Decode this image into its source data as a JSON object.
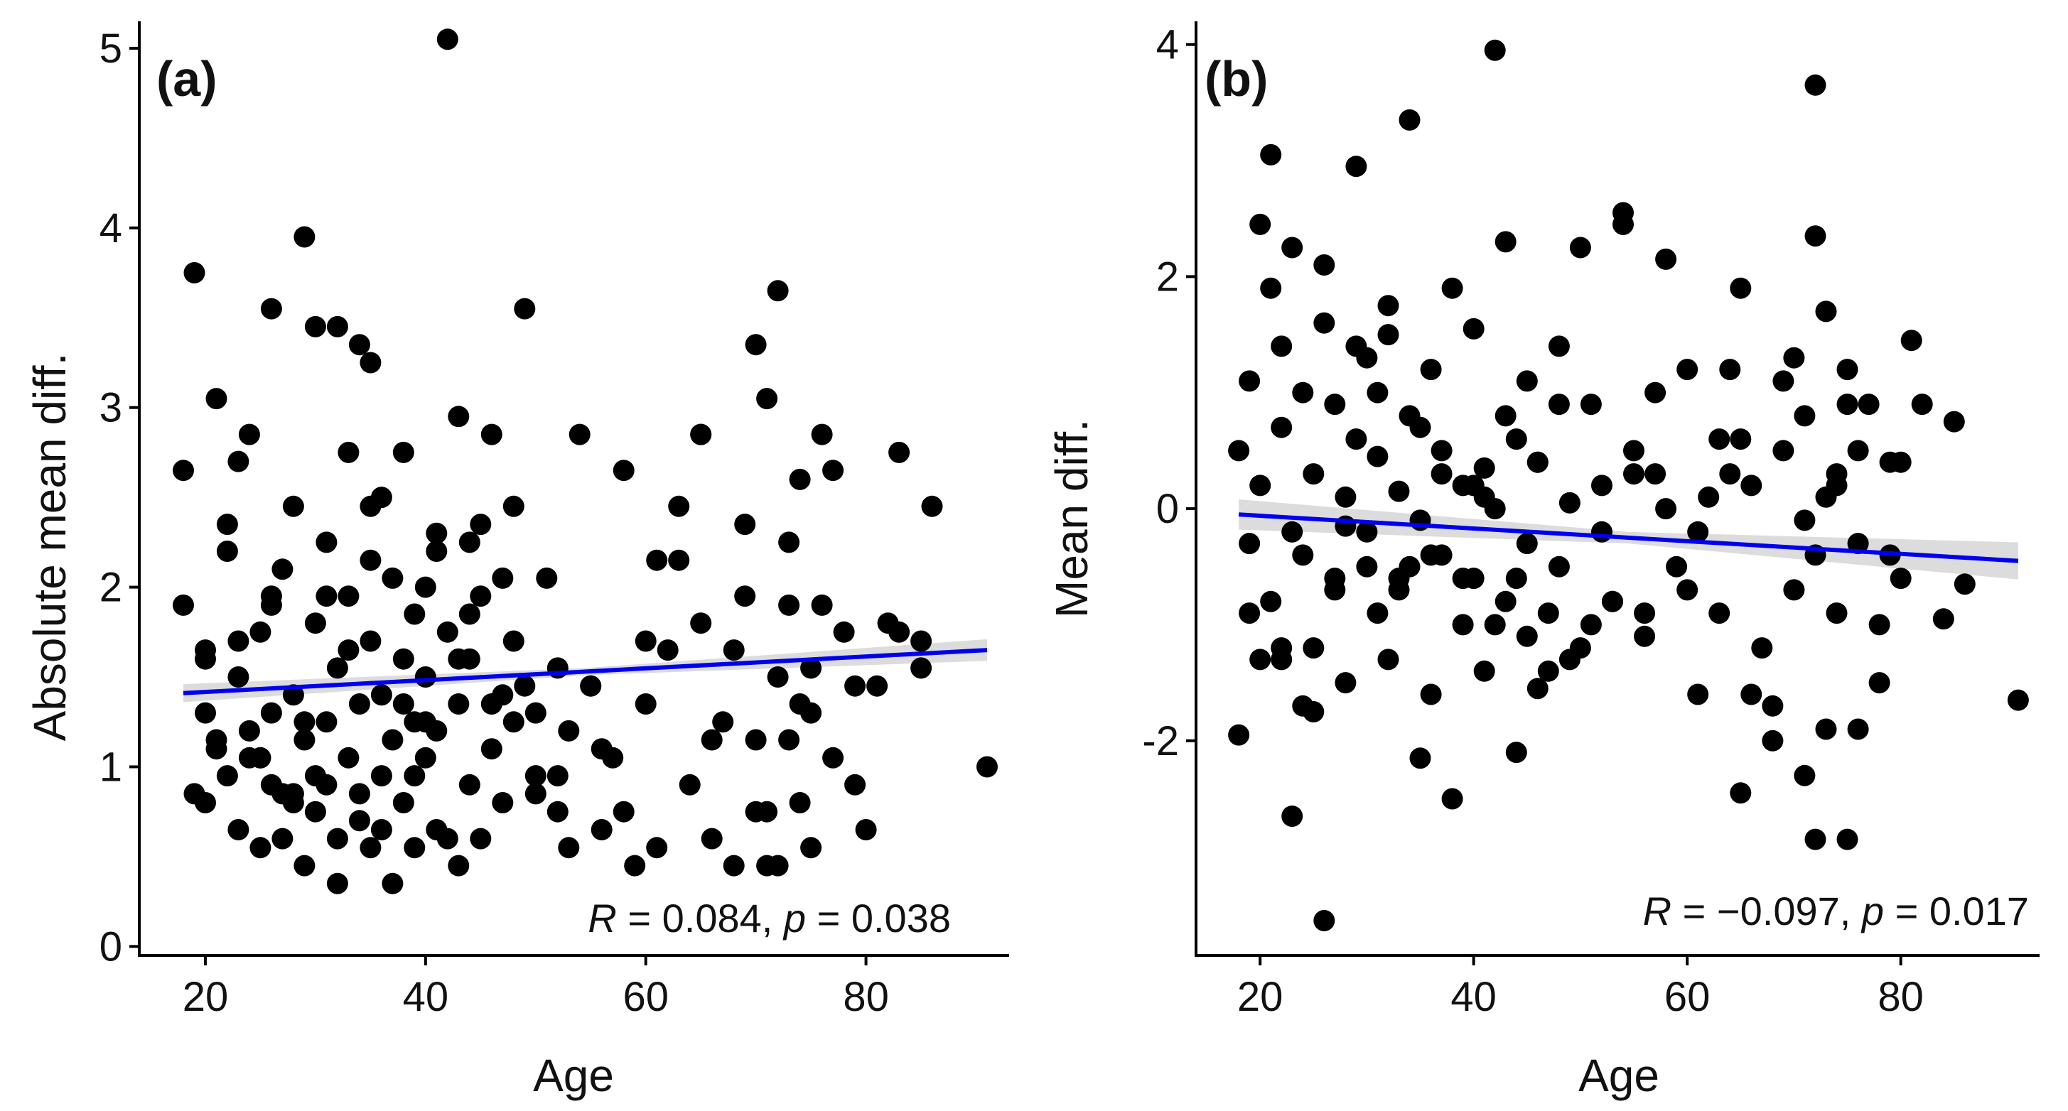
{
  "chart_data": [
    {
      "id": "a",
      "type": "scatter",
      "panel_label": "(a)",
      "xlabel": "Age",
      "ylabel": "Absolute mean diff.",
      "xlim": [
        14,
        93
      ],
      "ylim": [
        -0.05,
        5.15
      ],
      "xticks": [
        20,
        40,
        60,
        80
      ],
      "yticks": [
        0,
        1,
        2,
        3,
        4,
        5
      ],
      "x_tick_labels": [
        "20",
        "40",
        "60",
        "80"
      ],
      "y_tick_labels": [
        "0",
        "1",
        "2",
        "3",
        "4",
        "5"
      ],
      "fit_line": {
        "x": [
          18,
          91
        ],
        "y": [
          1.41,
          1.65
        ],
        "ci_halfwidth": [
          0.05,
          0.02,
          0.06
        ]
      },
      "annotation": {
        "R_symbol": "R",
        "R_value": " = 0.084, ",
        "p_symbol": "p",
        "p_value": " = 0.038"
      },
      "points_x": [
        18,
        19,
        20,
        20,
        20,
        21,
        21,
        22,
        22,
        23,
        23,
        23,
        24,
        24,
        25,
        25,
        25,
        26,
        26,
        26,
        27,
        27,
        28,
        28,
        28,
        29,
        29,
        29,
        30,
        30,
        30,
        31,
        31,
        31,
        32,
        32,
        32,
        33,
        33,
        33,
        34,
        34,
        34,
        35,
        35,
        35,
        36,
        36,
        36,
        37,
        37,
        37,
        38,
        38,
        38,
        39,
        39,
        39,
        40,
        40,
        40,
        41,
        41,
        41,
        42,
        42,
        43,
        43,
        43,
        44,
        44,
        44,
        45,
        45,
        46,
        46,
        47,
        47,
        48,
        48,
        49,
        50,
        50,
        51,
        52,
        52,
        53,
        54,
        55,
        56,
        57,
        58,
        59,
        60,
        61,
        62,
        63,
        64,
        65,
        65,
        66,
        67,
        68,
        69,
        70,
        70,
        71,
        71,
        72,
        72,
        73,
        73,
        74,
        74,
        75,
        75,
        76,
        77,
        78,
        79,
        80,
        81,
        82,
        83,
        85,
        86,
        19,
        22,
        24,
        26,
        29,
        30,
        33,
        35,
        38,
        42,
        49,
        58,
        65,
        68,
        72,
        83,
        35,
        28,
        45,
        55,
        18,
        21,
        27,
        31,
        40,
        44,
        47,
        52,
        56,
        63,
        71,
        74,
        77,
        85,
        91,
        20,
        23,
        25,
        32,
        36,
        39,
        43,
        46,
        50,
        61,
        66,
        70,
        75,
        79,
        26,
        34,
        41,
        48,
        53,
        60,
        69,
        73,
        76
      ],
      "points_y": [
        1.9,
        3.75,
        1.3,
        0.8,
        1.6,
        1.1,
        3.05,
        2.2,
        0.95,
        1.5,
        2.7,
        0.65,
        1.2,
        2.85,
        1.75,
        0.55,
        1.05,
        1.3,
        3.55,
        0.9,
        2.1,
        0.6,
        1.4,
        2.45,
        0.85,
        3.95,
        1.15,
        0.45,
        1.8,
        3.45,
        0.75,
        1.25,
        2.25,
        0.9,
        1.55,
        3.45,
        0.6,
        1.95,
        1.05,
        2.75,
        1.35,
        0.7,
        3.35,
        1.7,
        0.55,
        3.25,
        2.5,
        0.95,
        1.4,
        1.15,
        2.05,
        0.35,
        1.6,
        2.75,
        0.8,
        1.25,
        1.85,
        0.55,
        2.0,
        1.05,
        1.5,
        0.65,
        2.3,
        1.2,
        5.05,
        1.75,
        0.45,
        2.95,
        1.35,
        0.9,
        2.25,
        1.6,
        0.6,
        1.95,
        1.1,
        2.85,
        1.4,
        0.8,
        1.7,
        2.45,
        3.55,
        0.95,
        1.3,
        2.05,
        1.55,
        0.75,
        1.2,
        2.85,
        1.45,
        0.65,
        1.05,
        2.65,
        0.45,
        1.35,
        0.55,
        1.65,
        2.15,
        0.9,
        1.8,
        2.85,
        0.6,
        1.25,
        0.45,
        1.95,
        1.15,
        3.35,
        0.75,
        3.05,
        1.5,
        0.45,
        1.9,
        2.25,
        0.8,
        2.6,
        1.3,
        0.55,
        2.85,
        1.05,
        1.75,
        0.9,
        0.65,
        1.45,
        1.8,
        2.75,
        1.55,
        2.45,
        0.85,
        2.35,
        1.05,
        1.95,
        1.25,
        0.95,
        1.65,
        2.45,
        1.35,
        0.6,
        1.45,
        0.75,
        2.85,
        1.65,
        3.65,
        1.75,
        2.15,
        0.8,
        2.35,
        1.45,
        2.65,
        1.15,
        0.85,
        1.95,
        1.25,
        1.85,
        2.05,
        0.95,
        1.1,
        2.45,
        0.45,
        1.35,
        2.65,
        1.7,
        1.0,
        1.65,
        1.7,
        1.05,
        0.35,
        0.65,
        0.95,
        1.6,
        1.35,
        0.85,
        2.15,
        1.15,
        0.75,
        1.55,
        1.45,
        1.9,
        0.85,
        2.2,
        1.25,
        0.55,
        1.7,
        2.35,
        1.15,
        1.9,
        1.05,
        1.35,
        0.75,
        2.45,
        1.6
      ]
    },
    {
      "id": "b",
      "type": "scatter",
      "panel_label": "(b)",
      "xlabel": "Age",
      "ylabel": "Mean diff.",
      "xlim": [
        14,
        93
      ],
      "ylim": [
        -3.85,
        4.2
      ],
      "xticks": [
        20,
        40,
        60,
        80
      ],
      "yticks": [
        -2,
        0,
        2,
        4
      ],
      "x_tick_labels": [
        "20",
        "40",
        "60",
        "80"
      ],
      "y_tick_labels": [
        "-2",
        "0",
        "2",
        "4"
      ],
      "fit_line": {
        "x": [
          18,
          91
        ],
        "y": [
          -0.05,
          -0.45
        ],
        "ci_halfwidth": [
          0.13,
          0.05,
          0.16
        ]
      },
      "annotation": {
        "R_symbol": "R",
        "R_value": " = −0.097, ",
        "p_symbol": "p",
        "p_value": " = 0.017"
      },
      "points_x": [
        18,
        18,
        19,
        19,
        20,
        20,
        21,
        21,
        22,
        22,
        22,
        23,
        23,
        24,
        24,
        25,
        25,
        26,
        26,
        27,
        27,
        28,
        28,
        29,
        29,
        30,
        30,
        31,
        31,
        32,
        32,
        33,
        33,
        34,
        34,
        35,
        35,
        36,
        36,
        37,
        37,
        38,
        38,
        39,
        39,
        40,
        40,
        41,
        41,
        42,
        42,
        43,
        43,
        44,
        44,
        45,
        45,
        46,
        46,
        47,
        48,
        48,
        49,
        50,
        50,
        51,
        52,
        53,
        54,
        55,
        56,
        57,
        58,
        59,
        60,
        61,
        62,
        63,
        64,
        65,
        65,
        66,
        67,
        68,
        69,
        70,
        70,
        71,
        71,
        72,
        72,
        73,
        73,
        74,
        74,
        75,
        75,
        76,
        77,
        78,
        79,
        80,
        81,
        82,
        84,
        85,
        86,
        91,
        19,
        21,
        24,
        26,
        29,
        34,
        42,
        54,
        72,
        23,
        33,
        37,
        45,
        58,
        66,
        72,
        76,
        20,
        27,
        31,
        39,
        43,
        47,
        52,
        56,
        63,
        68,
        74,
        78,
        25,
        30,
        35,
        41,
        46,
        49,
        53,
        57,
        61,
        65,
        69,
        73,
        76,
        80,
        22,
        28,
        32,
        36,
        40,
        44,
        48,
        51,
        55,
        60,
        64,
        71,
        75,
        79
      ],
      "points_y": [
        0.5,
        -1.95,
        1.1,
        -0.3,
        2.45,
        0.2,
        -0.8,
        3.05,
        1.4,
        -1.2,
        0.7,
        2.25,
        -2.65,
        -0.4,
        1.0,
        0.3,
        -1.75,
        -3.55,
        1.6,
        0.9,
        -0.6,
        0.1,
        -1.5,
        2.95,
        0.6,
        -0.2,
        1.3,
        -0.9,
        0.45,
        1.75,
        -1.3,
        0.15,
        -0.7,
        3.35,
        0.8,
        -2.15,
        -0.1,
        1.2,
        -1.6,
        0.5,
        -0.4,
        1.9,
        -2.5,
        0.2,
        -1.0,
        1.55,
        -0.6,
        0.35,
        -1.4,
        3.95,
        0.0,
        -0.8,
        2.3,
        0.6,
        -2.1,
        -0.3,
        1.1,
        -1.55,
        0.4,
        -0.9,
        1.4,
        -0.5,
        0.05,
        2.25,
        -1.2,
        0.9,
        -0.2,
        -0.8,
        2.45,
        0.5,
        -1.1,
        0.3,
        2.15,
        -0.5,
        1.2,
        -1.6,
        0.1,
        -0.9,
        0.3,
        -2.45,
        1.9,
        0.2,
        -1.2,
        -2.0,
        0.5,
        -0.7,
        1.3,
        -2.3,
        0.8,
        3.65,
        -0.4,
        1.7,
        -1.9,
        0.2,
        -0.9,
        1.2,
        -2.85,
        -0.3,
        0.9,
        -1.5,
        0.4,
        -0.6,
        1.45,
        0.9,
        -0.95,
        0.75,
        -0.65,
        -1.65,
        -0.9,
        1.9,
        -1.7,
        2.1,
        1.4,
        -0.5,
        -1.0,
        2.55,
        2.35,
        -0.2,
        -0.6,
        0.3,
        -1.1,
        0.0,
        -1.6,
        -2.85,
        0.5,
        -1.3,
        -0.7,
        1.0,
        -0.6,
        0.8,
        -1.4,
        0.2,
        -0.9,
        0.6,
        -1.7,
        0.3,
        -1.0,
        -1.2,
        -0.5,
        0.7,
        0.1,
        0.4,
        -1.3,
        -0.8,
        1.0,
        -0.2,
        0.6,
        1.1,
        0.1,
        -1.9,
        0.4,
        -1.3,
        -0.15,
        1.5,
        -0.4,
        0.2,
        -0.6,
        0.9,
        -1.0,
        0.3,
        -0.7,
        1.2,
        -0.1,
        0.9,
        -0.4,
        0.5,
        -2.8,
        0.25
      ]
    }
  ]
}
